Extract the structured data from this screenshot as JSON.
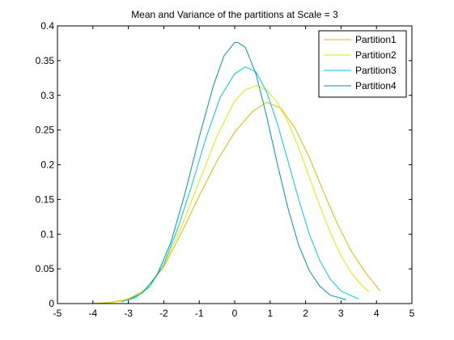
{
  "chart_data": {
    "type": "line",
    "title": "Mean and Variance of the partitions at Scale = 3",
    "xlabel": "",
    "ylabel": "",
    "xlim": [
      -5,
      5
    ],
    "ylim": [
      0,
      0.4
    ],
    "xticks": [
      "-5",
      "-4",
      "-3",
      "-2",
      "-1",
      "0",
      "1",
      "2",
      "3",
      "4",
      "5"
    ],
    "yticks": [
      "0",
      "0.05",
      "0.1",
      "0.15",
      "0.2",
      "0.25",
      "0.3",
      "0.35",
      "0.4"
    ],
    "grid": false,
    "legend_position": "top-right",
    "series": [
      {
        "name": "Partition1",
        "color": "#e6b400",
        "x": [
          -4.0,
          -3.5,
          -3.0,
          -2.5,
          -2.0,
          -1.5,
          -1.0,
          -0.5,
          0.0,
          0.5,
          0.9,
          1.3,
          1.7,
          2.1,
          2.5,
          2.9,
          3.3,
          3.7,
          4.1
        ],
        "y": [
          0.0003,
          0.0016,
          0.0066,
          0.0211,
          0.0526,
          0.1023,
          0.1552,
          0.2053,
          0.247,
          0.2765,
          0.29,
          0.2815,
          0.253,
          0.211,
          0.162,
          0.1145,
          0.0745,
          0.044,
          0.0185
        ]
      },
      {
        "name": "Partition2",
        "color": "#e6e600",
        "x": [
          -3.5,
          -3.0,
          -2.5,
          -2.0,
          -1.5,
          -1.0,
          -0.5,
          0.0,
          0.3,
          0.6,
          0.9,
          1.2,
          1.5,
          1.8,
          2.1,
          2.4,
          2.7,
          3.0,
          3.3,
          3.6,
          3.8
        ],
        "y": [
          0.001,
          0.0055,
          0.0213,
          0.0553,
          0.111,
          0.1756,
          0.241,
          0.292,
          0.308,
          0.314,
          0.308,
          0.29,
          0.262,
          0.225,
          0.183,
          0.141,
          0.102,
          0.069,
          0.0435,
          0.0255,
          0.0165
        ]
      },
      {
        "name": "Partition3",
        "color": "#00c8e6",
        "x": [
          -3.2,
          -2.8,
          -2.4,
          -2.0,
          -1.6,
          -1.2,
          -0.8,
          -0.4,
          0.0,
          0.3,
          0.6,
          0.9,
          1.2,
          1.5,
          1.8,
          2.1,
          2.4,
          2.7,
          3.0,
          3.5
        ],
        "y": [
          0.0025,
          0.0085,
          0.0241,
          0.0566,
          0.109,
          0.172,
          0.24,
          0.298,
          0.331,
          0.341,
          0.334,
          0.305,
          0.26,
          0.206,
          0.151,
          0.101,
          0.062,
          0.035,
          0.018,
          0.0065
        ]
      },
      {
        "name": "Partition4",
        "color": "#0096aa",
        "x": [
          -3.0,
          -2.6,
          -2.2,
          -1.8,
          -1.4,
          -1.0,
          -0.6,
          -0.3,
          0.0,
          0.1,
          0.3,
          0.6,
          0.9,
          1.2,
          1.5,
          1.8,
          2.1,
          2.4,
          2.7,
          3.15
        ],
        "y": [
          0.0052,
          0.0155,
          0.04,
          0.088,
          0.159,
          0.24,
          0.314,
          0.357,
          0.376,
          0.376,
          0.369,
          0.331,
          0.27,
          0.202,
          0.138,
          0.085,
          0.048,
          0.025,
          0.012,
          0.0055
        ]
      }
    ]
  }
}
